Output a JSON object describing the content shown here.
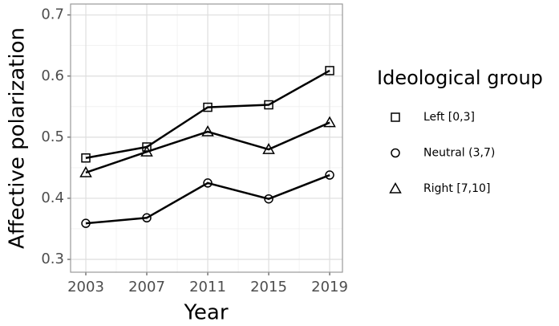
{
  "chart_data": {
    "type": "line",
    "x_label": "Year",
    "y_label": "Affective polarization",
    "x": [
      2003,
      2007,
      2011,
      2015,
      2019
    ],
    "series": [
      {
        "name": "Left [0,3]",
        "color": "#000000",
        "shape": "square",
        "values": [
          0.466,
          0.484,
          0.549,
          0.553,
          0.609
        ]
      },
      {
        "name": "Neutral (3,7)",
        "color": "#000000",
        "shape": "circle",
        "values": [
          0.359,
          0.368,
          0.425,
          0.399,
          0.438
        ]
      },
      {
        "name": "Right [7,10]",
        "color": "#000000",
        "shape": "triangle",
        "values": [
          0.442,
          0.476,
          0.509,
          0.48,
          0.524
        ]
      }
    ],
    "legend_title": "Ideological group",
    "xlim": [
      2002,
      2019.84
    ],
    "xticks": [
      2003,
      2007,
      2011,
      2015,
      2019
    ],
    "ylim": [
      0.279,
      0.718
    ],
    "yticks": [
      0.3,
      0.4,
      0.5,
      0.6,
      0.7
    ],
    "grid": true
  }
}
